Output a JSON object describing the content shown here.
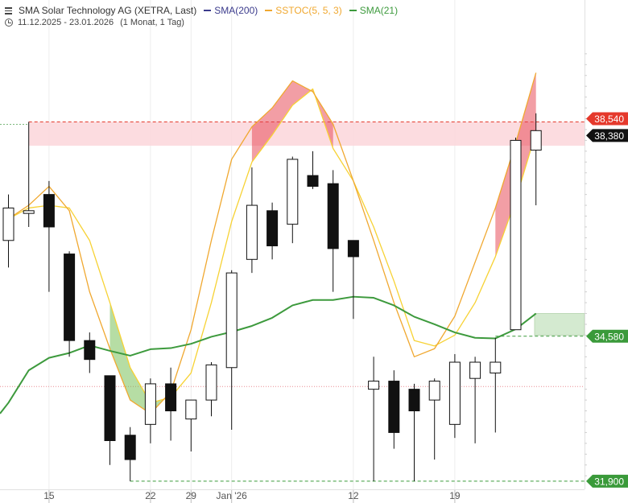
{
  "legend": {
    "title": "SMA Solar Technology AG (XETRA, Last)",
    "indicators": [
      {
        "label": "SMA(200)",
        "color": "#3b3b8c"
      },
      {
        "label": "SSTOC(5, 5, 3)",
        "color": "#f0a830"
      },
      {
        "label": "SMA(21)",
        "color": "#3d9a3d"
      }
    ],
    "range": "11.12.2025 - 23.01.2026",
    "interval": "(1 Monat, 1 Tag)"
  },
  "chart_data": {
    "type": "candlestick",
    "y_ticks": [
      "40,000",
      "39,000",
      "38,000",
      "37,000",
      "36,000",
      "35,000",
      "34,000",
      "33,000",
      "32,000"
    ],
    "ylim": [
      31.75,
      40.75
    ],
    "x_ticks": [
      {
        "index": 2,
        "label": "15"
      },
      {
        "index": 7,
        "label": "22"
      },
      {
        "index": 9,
        "label": "29"
      },
      {
        "index": 11,
        "label": "Jan '26"
      },
      {
        "index": 17,
        "label": "12"
      },
      {
        "index": 22,
        "label": "19"
      }
    ],
    "candles": [
      {
        "o": 36.35,
        "h": 37.2,
        "l": 35.85,
        "c": 36.95
      },
      {
        "o": 36.85,
        "h": 38.54,
        "l": 36.6,
        "c": 36.9
      },
      {
        "o": 37.2,
        "h": 37.45,
        "l": 35.4,
        "c": 36.6
      },
      {
        "o": 36.1,
        "h": 36.15,
        "l": 34.2,
        "c": 34.5
      },
      {
        "o": 34.5,
        "h": 34.65,
        "l": 33.9,
        "c": 34.15
      },
      {
        "o": 33.85,
        "h": 33.85,
        "l": 32.2,
        "c": 32.65
      },
      {
        "o": 32.75,
        "h": 32.9,
        "l": 31.9,
        "c": 32.3
      },
      {
        "o": 32.95,
        "h": 33.8,
        "l": 32.6,
        "c": 33.7
      },
      {
        "o": 33.7,
        "h": 34.0,
        "l": 32.65,
        "c": 33.2
      },
      {
        "o": 33.05,
        "h": 33.4,
        "l": 32.45,
        "c": 33.4
      },
      {
        "o": 33.4,
        "h": 34.1,
        "l": 33.1,
        "c": 34.05
      },
      {
        "o": 34.0,
        "h": 35.8,
        "l": 32.85,
        "c": 35.75
      },
      {
        "o": 36.0,
        "h": 37.7,
        "l": 35.75,
        "c": 37.0
      },
      {
        "o": 36.9,
        "h": 37.05,
        "l": 36.0,
        "c": 36.25
      },
      {
        "o": 36.65,
        "h": 37.9,
        "l": 36.3,
        "c": 37.85
      },
      {
        "o": 37.55,
        "h": 38.0,
        "l": 37.3,
        "c": 37.35
      },
      {
        "o": 37.4,
        "h": 37.65,
        "l": 35.4,
        "c": 36.2
      },
      {
        "o": 36.35,
        "h": 36.35,
        "l": 34.9,
        "c": 36.05
      },
      {
        "o": 33.6,
        "h": 34.2,
        "l": 31.9,
        "c": 33.75
      },
      {
        "o": 33.75,
        "h": 33.95,
        "l": 32.5,
        "c": 32.8
      },
      {
        "o": 33.6,
        "h": 33.7,
        "l": 31.9,
        "c": 33.2
      },
      {
        "o": 33.4,
        "h": 33.8,
        "l": 32.3,
        "c": 33.75
      },
      {
        "o": 32.95,
        "h": 34.25,
        "l": 32.7,
        "c": 34.1
      },
      {
        "o": 33.8,
        "h": 34.2,
        "l": 32.6,
        "c": 34.1
      },
      {
        "o": 33.9,
        "h": 34.55,
        "l": 32.8,
        "c": 34.1
      },
      {
        "o": 34.7,
        "h": 38.25,
        "l": 34.7,
        "c": 38.2
      },
      {
        "o": 38.02,
        "h": 38.7,
        "l": 37.0,
        "c": 38.38
      }
    ],
    "sma21": [
      33.35,
      33.95,
      34.18,
      34.27,
      34.41,
      34.31,
      34.22,
      34.34,
      34.36,
      34.44,
      34.57,
      34.66,
      34.77,
      34.92,
      35.15,
      35.25,
      35.25,
      35.31,
      35.29,
      35.15,
      34.94,
      34.8,
      34.65,
      34.55,
      34.54,
      34.71,
      35.0
    ],
    "sstoc_fast": [
      36.75,
      37.0,
      37.35,
      36.9,
      35.4,
      34.35,
      33.4,
      33.15,
      33.55,
      34.7,
      36.35,
      37.85,
      38.45,
      38.8,
      39.3,
      39.1,
      38.5,
      37.45,
      36.35,
      35.2,
      34.2,
      34.35,
      34.95,
      35.95,
      36.95,
      38.15,
      39.45
    ],
    "sstoc_slow": [
      36.75,
      36.95,
      37.0,
      36.95,
      36.35,
      35.2,
      34.0,
      33.35,
      33.45,
      33.9,
      35.2,
      36.7,
      37.8,
      38.3,
      38.85,
      39.15,
      38.05,
      37.45,
      36.6,
      35.6,
      34.5,
      34.4,
      34.6,
      35.2,
      36.05,
      37.1,
      38.35
    ],
    "resistance_zone": {
      "from": 38.25,
      "to": 38.54
    },
    "support_zone": {
      "from": 34.6,
      "to": 35.0
    },
    "price_labels": [
      {
        "label": "38,540",
        "value": 38.54,
        "color": "#e5392c"
      },
      {
        "label": "38,380",
        "value": 38.38,
        "color": "#111111"
      },
      {
        "label": "34,580",
        "value": 34.58,
        "color": "#3a9a3a"
      },
      {
        "label": "31,900",
        "value": 31.9,
        "color": "#3a9a3a"
      }
    ],
    "reference_line": 33.65
  }
}
